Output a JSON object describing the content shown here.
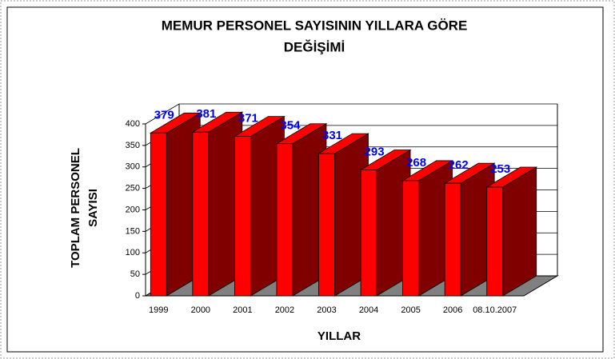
{
  "chart_data": {
    "type": "bar3d",
    "title": [
      "MEMUR PERSONEL SAYISININ YILLARA GÖRE",
      "DEĞİŞİMİ"
    ],
    "x_label": "YILLAR",
    "y_label": [
      "TOPLAM PERSONEL",
      "SAYISI"
    ],
    "categories": [
      "1999",
      "2000",
      "2001",
      "2002",
      "2003",
      "2004",
      "2005",
      "2006",
      "08.10.2007"
    ],
    "values": [
      379,
      381,
      371,
      354,
      331,
      293,
      268,
      262,
      253
    ],
    "color": "#ff0000",
    "side_color": "#800000",
    "label_color": "#0000ff",
    "floor_color": "#808080",
    "ylim": [
      0,
      400
    ],
    "yticks": [
      0,
      50,
      100,
      150,
      200,
      250,
      300,
      350,
      400
    ],
    "grid": true
  }
}
